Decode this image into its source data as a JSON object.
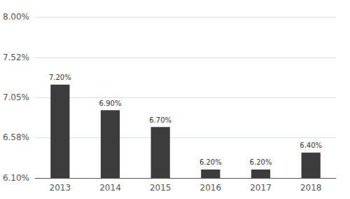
{
  "chart_data": {
    "type": "bar",
    "categories": [
      "2013",
      "2014",
      "2015",
      "2016",
      "2017",
      "2018"
    ],
    "values": [
      7.2,
      6.9,
      6.7,
      6.2,
      6.2,
      6.4
    ],
    "value_labels": [
      "7.20%",
      "6.90%",
      "6.70%",
      "6.20%",
      "6.20%",
      "6.40%"
    ],
    "color": "#3c3c3c",
    "ylim": [
      6.1,
      8.0
    ],
    "yticks": [
      {
        "value": 6.1,
        "label": "6.10%"
      },
      {
        "value": 6.58,
        "label": "6.58%"
      },
      {
        "value": 7.05,
        "label": "7.05%"
      },
      {
        "value": 7.52,
        "label": "7.52%"
      },
      {
        "value": 8.0,
        "label": "8.00%"
      }
    ],
    "grid": true,
    "data_labels": true
  }
}
